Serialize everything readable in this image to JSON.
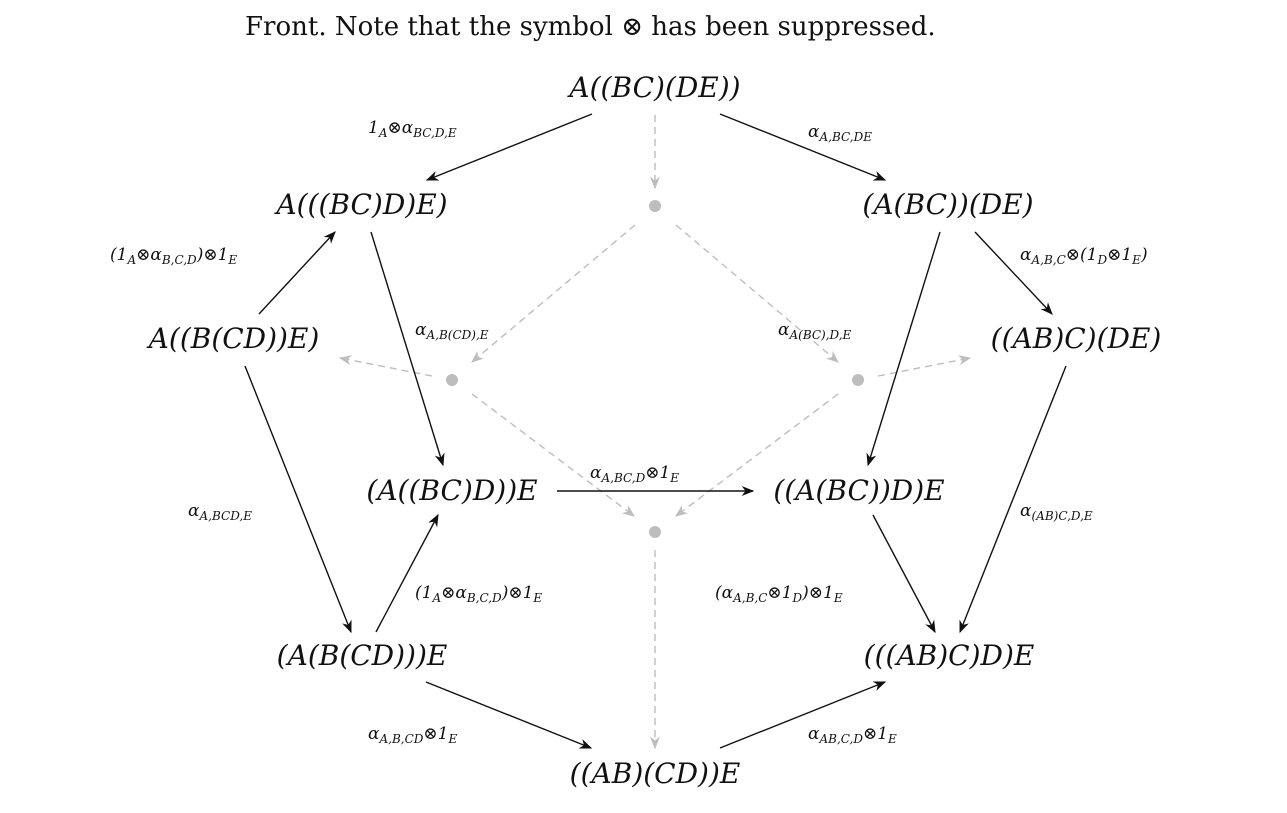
{
  "caption": "Front. Note that the symbol ⊗ has been suppressed.",
  "nodes": [
    {
      "id": "n1",
      "label": "A((BC)(DE))"
    },
    {
      "id": "n2",
      "label": "A(((BC)D)E)"
    },
    {
      "id": "n3",
      "label": "(A(BC))(DE)"
    },
    {
      "id": "n4",
      "label": "A((B(CD))E)"
    },
    {
      "id": "n5",
      "label": "((AB)C)(DE)"
    },
    {
      "id": "n6",
      "label": "(A((BC)D))E"
    },
    {
      "id": "n7",
      "label": "((A(BC))D)E"
    },
    {
      "id": "n8",
      "label": "(A(B(CD)))E"
    },
    {
      "id": "n9",
      "label": "(((AB)C)D)E"
    },
    {
      "id": "n10",
      "label": "((AB)(CD))E"
    }
  ],
  "edge_labels": [
    {
      "id": "e1",
      "base": "1",
      "sub": "A",
      "rest": "⊗α",
      "sub2": "BC,D,E"
    },
    {
      "id": "e2",
      "base": "α",
      "sub": "A,BC,DE"
    },
    {
      "id": "e3",
      "text": "(1_A⊗α_{B,C,D})⊗1_E"
    },
    {
      "id": "e4",
      "text": "α_{A,B,C}⊗(1_D⊗1_E)"
    },
    {
      "id": "e5",
      "text": "α_{A,B(CD),E}"
    },
    {
      "id": "e6",
      "text": "α_{A(BC),D,E}"
    },
    {
      "id": "e7",
      "text": "α_{A,BC,D}⊗1_E"
    },
    {
      "id": "e8",
      "text": "α_{A,BCD,E}"
    },
    {
      "id": "e9",
      "text": "α_{(AB)C,D,E}"
    },
    {
      "id": "e10",
      "text": "(1_A⊗α_{B,C,D})⊗1_E"
    },
    {
      "id": "e11",
      "text": "(α_{A,B,C}⊗1_D)⊗1_E"
    },
    {
      "id": "e12",
      "text": "α_{A,B,CD}⊗1_E"
    },
    {
      "id": "e13",
      "text": "α_{AB,C,D}⊗1_E"
    }
  ]
}
